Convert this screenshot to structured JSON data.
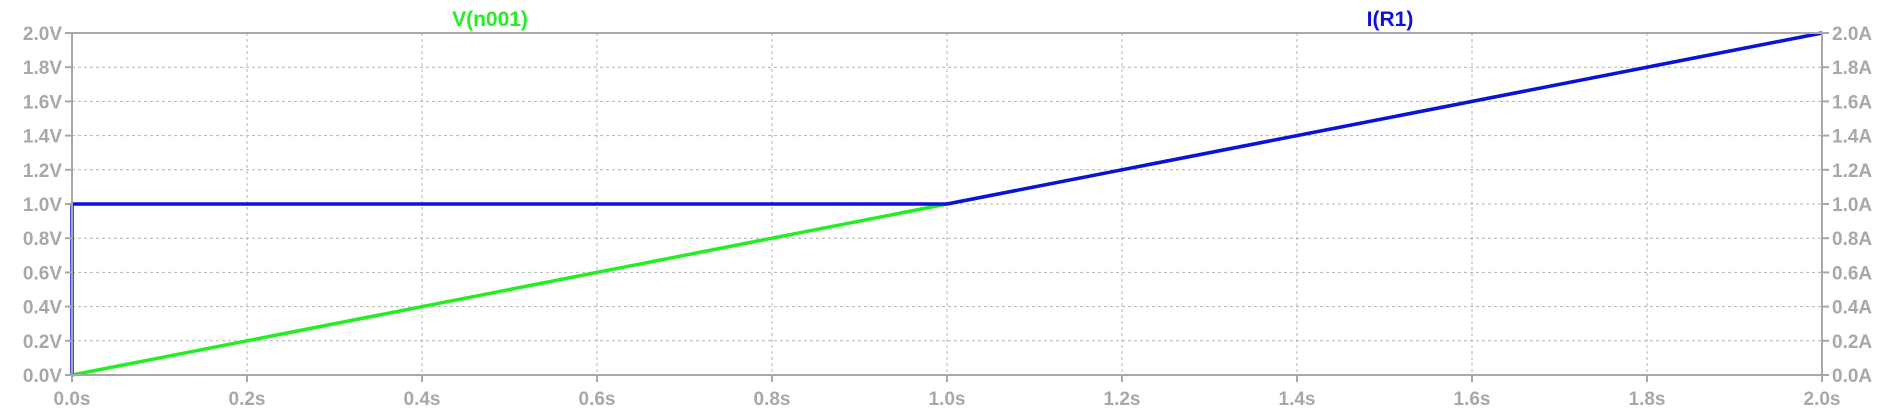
{
  "chart_data": {
    "type": "line",
    "x_axis": {
      "range": [
        0,
        2.0
      ],
      "ticks": [
        "0.0s",
        "0.2s",
        "0.4s",
        "0.6s",
        "0.8s",
        "1.0s",
        "1.2s",
        "1.4s",
        "1.6s",
        "1.8s",
        "2.0s"
      ]
    },
    "y_axis_left": {
      "range": [
        0,
        2.0
      ],
      "ticks": [
        "0.0V",
        "0.2V",
        "0.4V",
        "0.6V",
        "0.8V",
        "1.0V",
        "1.2V",
        "1.4V",
        "1.6V",
        "1.8V",
        "2.0V"
      ]
    },
    "y_axis_right": {
      "range": [
        0,
        2.0
      ],
      "ticks": [
        "0.0A",
        "0.2A",
        "0.4A",
        "0.6A",
        "0.8A",
        "1.0A",
        "1.2A",
        "1.4A",
        "1.6A",
        "1.8A",
        "2.0A"
      ]
    },
    "grid": true,
    "series": [
      {
        "name": "V(n001)",
        "axis": "left",
        "color": "#22ee22",
        "x": [
          0,
          1.0,
          2.0
        ],
        "y": [
          0,
          1.0,
          2.0
        ]
      },
      {
        "name": "I(R1)",
        "axis": "right",
        "color": "#1010dd",
        "x": [
          0,
          0,
          1.0,
          2.0
        ],
        "y": [
          0,
          1.0,
          1.0,
          2.0
        ]
      }
    ]
  }
}
